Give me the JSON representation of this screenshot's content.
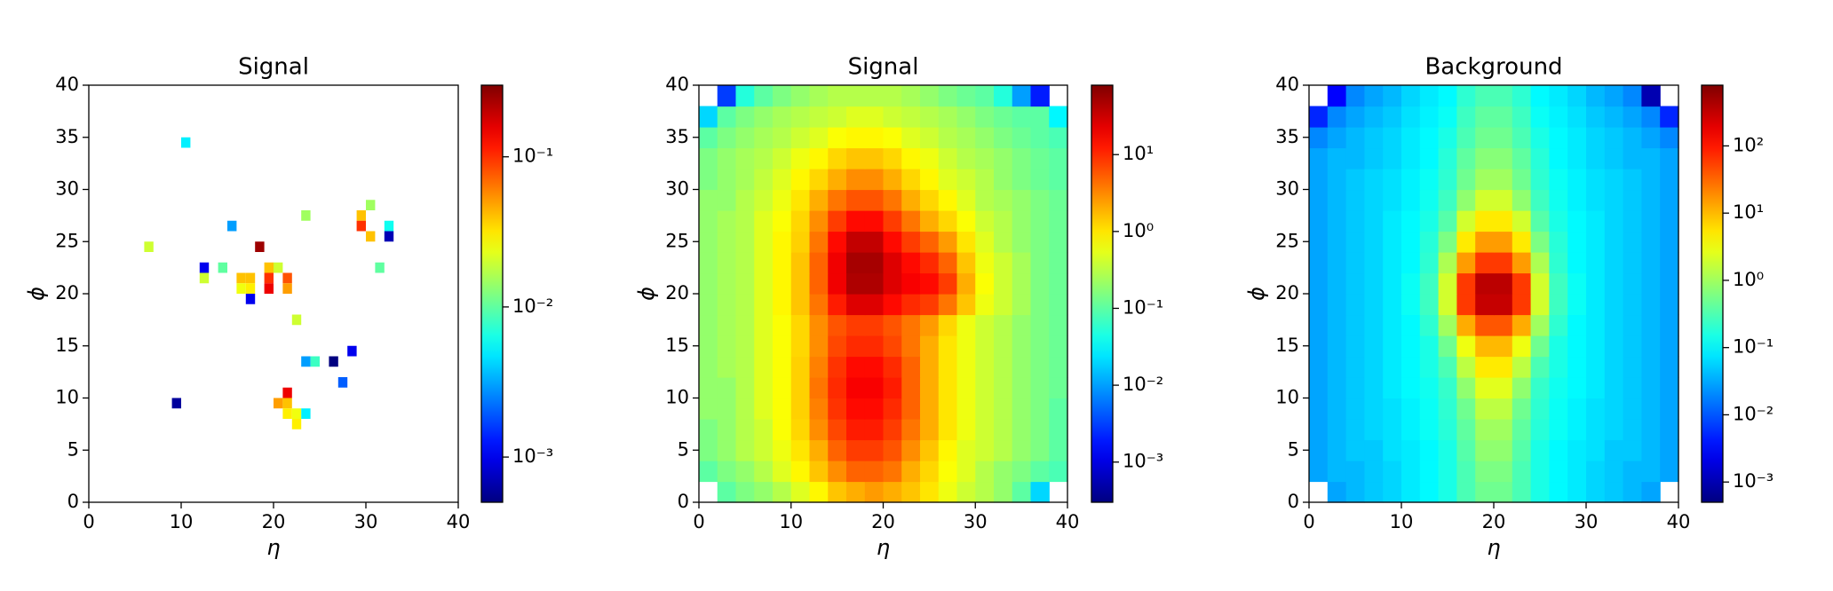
{
  "chart_data": [
    {
      "type": "heatmap",
      "title": "Signal",
      "xlabel": "η",
      "ylabel": "ϕ",
      "colormap": "jet",
      "color_scale": "log",
      "xlim": [
        0,
        40
      ],
      "ylim": [
        0,
        40
      ],
      "xticks": [
        0,
        10,
        20,
        30,
        40
      ],
      "yticks": [
        0,
        5,
        10,
        15,
        20,
        25,
        30,
        35,
        40
      ],
      "clim": [
        0.0005,
        0.3
      ],
      "cticks": [
        {
          "value": 0.001,
          "label": "10⁻³"
        },
        {
          "value": 0.01,
          "label": "10⁻²"
        },
        {
          "value": 0.1,
          "label": "10⁻¹"
        }
      ],
      "x": [
        10.5,
        15.5,
        12.5,
        12.5,
        14.5,
        6.5,
        18.5,
        16.5,
        17.5,
        16.5,
        17.5,
        17.5,
        19.5,
        20.5,
        19.5,
        19.5,
        21.5,
        21.5,
        22.5,
        23.5,
        29.5,
        29.5,
        30.5,
        30.5,
        32.5,
        32.5,
        31.5,
        28.5,
        27.5,
        23.5,
        24.5,
        26.5,
        9.5,
        20.5,
        21.5,
        21.5,
        21.5,
        22.5,
        23.5,
        22.5
      ],
      "y": [
        34.5,
        26.5,
        22.5,
        21.5,
        22.5,
        24.5,
        24.5,
        21.5,
        21.5,
        20.5,
        20.5,
        19.5,
        22.5,
        22.5,
        21.5,
        20.5,
        21.5,
        20.5,
        17.5,
        27.5,
        27.5,
        26.5,
        25.5,
        28.5,
        26.5,
        25.5,
        22.5,
        14.5,
        11.5,
        13.5,
        13.5,
        13.5,
        9.5,
        9.5,
        9.5,
        10.5,
        8.5,
        8.5,
        8.5,
        7.5
      ],
      "values": [
        0.005,
        0.003,
        0.001,
        0.02,
        0.01,
        0.02,
        0.25,
        0.04,
        0.04,
        0.025,
        0.03,
        0.001,
        0.04,
        0.02,
        0.1,
        0.15,
        0.08,
        0.05,
        0.02,
        0.015,
        0.04,
        0.1,
        0.04,
        0.015,
        0.006,
        0.0007,
        0.01,
        0.001,
        0.002,
        0.003,
        0.008,
        0.0005,
        0.0006,
        0.05,
        0.04,
        0.15,
        0.03,
        0.025,
        0.005,
        0.03
      ]
    },
    {
      "type": "heatmap",
      "title": "Signal",
      "xlabel": "η",
      "ylabel": "ϕ",
      "colormap": "jet",
      "color_scale": "log",
      "xlim": [
        0,
        40
      ],
      "ylim": [
        0,
        40
      ],
      "xticks": [
        0,
        10,
        20,
        30,
        40
      ],
      "yticks": [
        0,
        5,
        10,
        15,
        20,
        25,
        30,
        35,
        40
      ],
      "clim": [
        0.0003,
        80
      ],
      "cticks": [
        {
          "value": 0.001,
          "label": "10⁻³"
        },
        {
          "value": 0.01,
          "label": "10⁻²"
        },
        {
          "value": 0.1,
          "label": "10⁻¹"
        },
        {
          "value": 1,
          "label": "10⁰"
        },
        {
          "value": 10,
          "label": "10¹"
        }
      ],
      "xbins": [
        0,
        2,
        4,
        6,
        8,
        10,
        12,
        14,
        16,
        18,
        20,
        22,
        24,
        26,
        28,
        30,
        32,
        34,
        36,
        38,
        40
      ],
      "ybins": [
        0,
        2,
        4,
        6,
        8,
        10,
        12,
        14,
        16,
        18,
        20,
        22,
        24,
        26,
        28,
        30,
        32,
        34,
        36,
        38,
        40
      ],
      "values": [
        [
          null,
          0.1,
          0.15,
          0.2,
          0.3,
          0.5,
          0.8,
          1.5,
          2,
          2.5,
          2,
          1.5,
          1,
          0.6,
          0.4,
          0.3,
          0.2,
          0.1,
          0.02,
          null
        ],
        [
          0.1,
          0.15,
          0.2,
          0.3,
          0.5,
          0.8,
          1.5,
          3,
          5,
          5,
          4,
          2,
          1.2,
          0.7,
          0.5,
          0.3,
          0.2,
          0.15,
          0.1,
          0.08
        ],
        [
          0.15,
          0.2,
          0.3,
          0.4,
          0.6,
          1,
          2,
          5,
          8,
          8,
          6,
          3,
          1.5,
          0.8,
          0.5,
          0.4,
          0.3,
          0.2,
          0.15,
          0.1
        ],
        [
          0.15,
          0.2,
          0.3,
          0.4,
          0.7,
          1.2,
          3,
          7,
          12,
          12,
          8,
          4,
          2,
          1,
          0.6,
          0.4,
          0.3,
          0.2,
          0.15,
          0.1
        ],
        [
          0.2,
          0.2,
          0.3,
          0.5,
          0.7,
          1.3,
          3.5,
          9,
          15,
          15,
          10,
          5,
          2,
          1,
          0.6,
          0.4,
          0.3,
          0.2,
          0.15,
          0.1
        ],
        [
          0.2,
          0.2,
          0.3,
          0.5,
          0.7,
          1.3,
          4,
          10,
          18,
          18,
          12,
          5,
          2,
          1,
          0.6,
          0.4,
          0.3,
          0.2,
          0.15,
          0.12
        ],
        [
          0.2,
          0.25,
          0.3,
          0.5,
          0.7,
          1.3,
          3.5,
          9,
          15,
          15,
          10,
          5,
          2,
          1,
          0.6,
          0.4,
          0.3,
          0.2,
          0.15,
          0.12
        ],
        [
          0.2,
          0.25,
          0.3,
          0.5,
          0.7,
          1.2,
          3,
          7,
          10,
          10,
          7,
          4,
          2,
          1,
          0.6,
          0.4,
          0.3,
          0.2,
          0.15,
          0.12
        ],
        [
          0.2,
          0.25,
          0.3,
          0.5,
          0.7,
          1.2,
          3,
          6,
          8,
          8,
          6,
          4,
          2.5,
          1.2,
          0.6,
          0.4,
          0.3,
          0.2,
          0.15,
          0.12
        ],
        [
          0.2,
          0.25,
          0.3,
          0.5,
          0.8,
          1.5,
          4,
          12,
          25,
          25,
          15,
          10,
          8,
          4,
          1.5,
          0.6,
          0.4,
          0.25,
          0.15,
          0.12
        ],
        [
          0.2,
          0.25,
          0.3,
          0.5,
          0.8,
          1.5,
          5,
          20,
          45,
          45,
          25,
          18,
          15,
          8,
          2,
          0.7,
          0.4,
          0.25,
          0.15,
          0.12
        ],
        [
          0.2,
          0.25,
          0.3,
          0.5,
          0.8,
          1.5,
          5,
          20,
          50,
          50,
          25,
          15,
          10,
          5,
          1.5,
          0.6,
          0.4,
          0.25,
          0.15,
          0.12
        ],
        [
          0.2,
          0.25,
          0.3,
          0.5,
          0.8,
          1.3,
          4,
          15,
          35,
          35,
          15,
          8,
          5,
          2.5,
          1,
          0.5,
          0.3,
          0.2,
          0.15,
          0.12
        ],
        [
          0.2,
          0.25,
          0.3,
          0.5,
          0.7,
          1.2,
          3,
          8,
          15,
          15,
          8,
          4,
          2,
          1.2,
          0.7,
          0.4,
          0.3,
          0.2,
          0.15,
          0.12
        ],
        [
          0.2,
          0.2,
          0.3,
          0.4,
          0.6,
          1,
          2,
          4,
          6,
          6,
          4,
          2,
          1.2,
          0.8,
          0.5,
          0.3,
          0.25,
          0.2,
          0.15,
          0.12
        ],
        [
          0.15,
          0.2,
          0.25,
          0.35,
          0.5,
          0.8,
          1.2,
          2,
          3,
          3,
          2,
          1.2,
          0.8,
          0.5,
          0.4,
          0.3,
          0.2,
          0.15,
          0.12,
          0.1
        ],
        [
          0.15,
          0.2,
          0.25,
          0.3,
          0.4,
          0.6,
          0.8,
          1.2,
          1.5,
          1.5,
          1.2,
          0.8,
          0.6,
          0.4,
          0.3,
          0.25,
          0.2,
          0.15,
          0.12,
          0.1
        ],
        [
          0.1,
          0.15,
          0.2,
          0.25,
          0.3,
          0.4,
          0.5,
          0.7,
          0.8,
          0.8,
          0.7,
          0.5,
          0.4,
          0.3,
          0.25,
          0.2,
          0.15,
          0.12,
          0.1,
          0.08
        ],
        [
          0.02,
          0.1,
          0.15,
          0.2,
          0.25,
          0.3,
          0.35,
          0.4,
          0.5,
          0.5,
          0.4,
          0.35,
          0.3,
          0.25,
          0.2,
          0.15,
          0.12,
          0.1,
          0.1,
          0.03
        ],
        [
          null,
          0.003,
          0.05,
          0.1,
          0.15,
          0.2,
          0.25,
          0.3,
          0.3,
          0.3,
          0.3,
          0.25,
          0.2,
          0.15,
          0.12,
          0.1,
          0.05,
          0.01,
          0.002,
          null
        ]
      ]
    },
    {
      "type": "heatmap",
      "title": "Background",
      "xlabel": "η",
      "ylabel": "ϕ",
      "colormap": "jet",
      "color_scale": "log",
      "xlim": [
        0,
        40
      ],
      "ylim": [
        0,
        40
      ],
      "xticks": [
        0,
        10,
        20,
        30,
        40
      ],
      "yticks": [
        0,
        5,
        10,
        15,
        20,
        25,
        30,
        35,
        40
      ],
      "clim": [
        0.0005,
        800
      ],
      "cticks": [
        {
          "value": 0.001,
          "label": "10⁻³"
        },
        {
          "value": 0.01,
          "label": "10⁻²"
        },
        {
          "value": 0.1,
          "label": "10⁻¹"
        },
        {
          "value": 1,
          "label": "10⁰"
        },
        {
          "value": 10,
          "label": "10¹"
        },
        {
          "value": 100,
          "label": "10²"
        }
      ],
      "xbins": [
        0,
        2,
        4,
        6,
        8,
        10,
        12,
        14,
        16,
        18,
        20,
        22,
        24,
        26,
        28,
        30,
        32,
        34,
        36,
        38,
        40
      ],
      "ybins": [
        0,
        2,
        4,
        6,
        8,
        10,
        12,
        14,
        16,
        18,
        20,
        22,
        24,
        26,
        28,
        30,
        32,
        34,
        36,
        38,
        40
      ],
      "values": [
        [
          null,
          0.03,
          0.04,
          0.05,
          0.06,
          0.08,
          0.1,
          0.15,
          0.3,
          0.5,
          0.5,
          0.3,
          0.15,
          0.1,
          0.08,
          0.06,
          0.05,
          0.04,
          0.03,
          null
        ],
        [
          0.03,
          0.04,
          0.04,
          0.05,
          0.06,
          0.08,
          0.1,
          0.15,
          0.3,
          0.6,
          0.6,
          0.3,
          0.15,
          0.1,
          0.08,
          0.06,
          0.05,
          0.04,
          0.04,
          0.03
        ],
        [
          0.03,
          0.04,
          0.05,
          0.05,
          0.07,
          0.08,
          0.1,
          0.15,
          0.35,
          0.8,
          0.8,
          0.35,
          0.15,
          0.1,
          0.08,
          0.07,
          0.05,
          0.05,
          0.04,
          0.03
        ],
        [
          0.03,
          0.04,
          0.05,
          0.06,
          0.07,
          0.09,
          0.12,
          0.18,
          0.4,
          1,
          1,
          0.4,
          0.18,
          0.12,
          0.09,
          0.07,
          0.06,
          0.05,
          0.04,
          0.03
        ],
        [
          0.03,
          0.04,
          0.05,
          0.06,
          0.07,
          0.09,
          0.12,
          0.2,
          0.5,
          1.5,
          1.5,
          0.5,
          0.2,
          0.12,
          0.09,
          0.07,
          0.06,
          0.05,
          0.04,
          0.03
        ],
        [
          0.03,
          0.04,
          0.05,
          0.06,
          0.08,
          0.1,
          0.13,
          0.22,
          0.8,
          2.5,
          2.5,
          0.8,
          0.22,
          0.13,
          0.1,
          0.08,
          0.06,
          0.05,
          0.04,
          0.03
        ],
        [
          0.03,
          0.04,
          0.05,
          0.06,
          0.08,
          0.1,
          0.15,
          0.3,
          1.5,
          5,
          5,
          1.5,
          0.3,
          0.15,
          0.1,
          0.08,
          0.06,
          0.05,
          0.04,
          0.03
        ],
        [
          0.03,
          0.04,
          0.05,
          0.06,
          0.08,
          0.1,
          0.15,
          0.5,
          3,
          10,
          10,
          3,
          0.5,
          0.15,
          0.1,
          0.08,
          0.06,
          0.05,
          0.04,
          0.03
        ],
        [
          0.03,
          0.04,
          0.05,
          0.06,
          0.08,
          0.1,
          0.2,
          1,
          12,
          40,
          40,
          12,
          1,
          0.2,
          0.1,
          0.08,
          0.06,
          0.05,
          0.04,
          0.03
        ],
        [
          0.03,
          0.04,
          0.05,
          0.06,
          0.08,
          0.12,
          0.25,
          2,
          60,
          300,
          300,
          60,
          2,
          0.25,
          0.12,
          0.08,
          0.06,
          0.05,
          0.04,
          0.03
        ],
        [
          0.03,
          0.04,
          0.05,
          0.06,
          0.08,
          0.12,
          0.25,
          2,
          60,
          350,
          350,
          60,
          2,
          0.25,
          0.12,
          0.08,
          0.06,
          0.05,
          0.04,
          0.03
        ],
        [
          0.03,
          0.04,
          0.05,
          0.06,
          0.08,
          0.1,
          0.2,
          1.2,
          15,
          60,
          60,
          15,
          1.2,
          0.2,
          0.1,
          0.08,
          0.06,
          0.05,
          0.04,
          0.03
        ],
        [
          0.03,
          0.04,
          0.05,
          0.06,
          0.08,
          0.1,
          0.18,
          0.6,
          5,
          15,
          15,
          5,
          0.6,
          0.18,
          0.1,
          0.08,
          0.06,
          0.05,
          0.04,
          0.03
        ],
        [
          0.03,
          0.04,
          0.05,
          0.06,
          0.08,
          0.1,
          0.15,
          0.35,
          2,
          5,
          5,
          2,
          0.35,
          0.15,
          0.1,
          0.08,
          0.06,
          0.05,
          0.04,
          0.03
        ],
        [
          0.03,
          0.04,
          0.05,
          0.06,
          0.07,
          0.09,
          0.13,
          0.25,
          0.8,
          2,
          2,
          0.8,
          0.25,
          0.13,
          0.09,
          0.07,
          0.06,
          0.05,
          0.04,
          0.03
        ],
        [
          0.03,
          0.04,
          0.05,
          0.06,
          0.07,
          0.09,
          0.12,
          0.2,
          0.5,
          1,
          1,
          0.5,
          0.2,
          0.12,
          0.09,
          0.07,
          0.06,
          0.05,
          0.04,
          0.03
        ],
        [
          0.03,
          0.04,
          0.04,
          0.05,
          0.06,
          0.08,
          0.1,
          0.18,
          0.4,
          0.7,
          0.7,
          0.4,
          0.18,
          0.1,
          0.08,
          0.06,
          0.05,
          0.04,
          0.04,
          0.03
        ],
        [
          0.02,
          0.03,
          0.04,
          0.05,
          0.06,
          0.08,
          0.1,
          0.15,
          0.3,
          0.5,
          0.5,
          0.3,
          0.15,
          0.1,
          0.08,
          0.06,
          0.05,
          0.04,
          0.03,
          0.02
        ],
        [
          0.005,
          0.02,
          0.03,
          0.04,
          0.05,
          0.07,
          0.09,
          0.12,
          0.25,
          0.4,
          0.4,
          0.25,
          0.12,
          0.09,
          0.07,
          0.05,
          0.04,
          0.03,
          0.02,
          0.005
        ],
        [
          null,
          0.003,
          0.02,
          0.03,
          0.04,
          0.06,
          0.08,
          0.1,
          0.2,
          0.3,
          0.3,
          0.2,
          0.1,
          0.08,
          0.06,
          0.04,
          0.03,
          0.02,
          0.001,
          null
        ]
      ]
    }
  ]
}
